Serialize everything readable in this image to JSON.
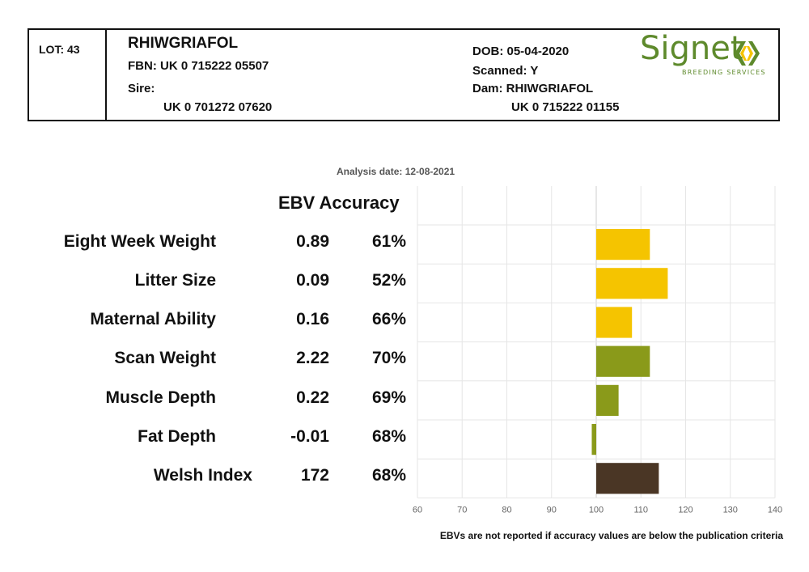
{
  "header": {
    "lot": "LOT: 43",
    "name": "RHIWGRIAFOL",
    "fbn": "FBN: UK 0 715222 05507",
    "sire_label": "Sire:",
    "sire_id": "UK 0 701272 07620",
    "dob": "DOB: 05-04-2020",
    "scanned": "Scanned: Y",
    "dam": "Dam: RHIWGRIAFOL",
    "dam_id": "UK 0 715222 01155"
  },
  "logo": {
    "word": "Signet",
    "subtitle": "BREEDING SERVICES",
    "colors": [
      "#5e8a2c",
      "#f5c400"
    ]
  },
  "analysis_date": "Analysis date: 12-08-2021",
  "column_header": "EBV Accuracy",
  "footnote": "EBVs are not reported if accuracy values are below the publication criteria",
  "rows": [
    {
      "label": "Eight Week Weight",
      "ebv": "0.89",
      "accuracy": "61%"
    },
    {
      "label": "Litter Size",
      "ebv": "0.09",
      "accuracy": "52%"
    },
    {
      "label": "Maternal Ability",
      "ebv": "0.16",
      "accuracy": "66%"
    },
    {
      "label": "Scan Weight",
      "ebv": "2.22",
      "accuracy": "70%"
    },
    {
      "label": "Muscle Depth",
      "ebv": "0.22",
      "accuracy": "69%"
    },
    {
      "label": "Fat Depth",
      "ebv": "-0.01",
      "accuracy": "68%"
    },
    {
      "label": "Welsh Index",
      "ebv": "172",
      "accuracy": "68%"
    }
  ],
  "chart_data": {
    "type": "bar",
    "orientation": "horizontal",
    "baseline": 100,
    "xlim": [
      60,
      140
    ],
    "xticks": [
      60,
      70,
      80,
      90,
      100,
      110,
      120,
      130,
      140
    ],
    "grid": true,
    "categories": [
      "Eight Week Weight",
      "Litter Size",
      "Maternal Ability",
      "Scan Weight",
      "Muscle Depth",
      "Fat Depth",
      "Welsh Index"
    ],
    "values": [
      112,
      116,
      108,
      112,
      105,
      99,
      114
    ],
    "colors": [
      "#f5c400",
      "#f5c400",
      "#f5c400",
      "#8a9a1a",
      "#8a9a1a",
      "#8a9a1a",
      "#4a3625"
    ]
  }
}
